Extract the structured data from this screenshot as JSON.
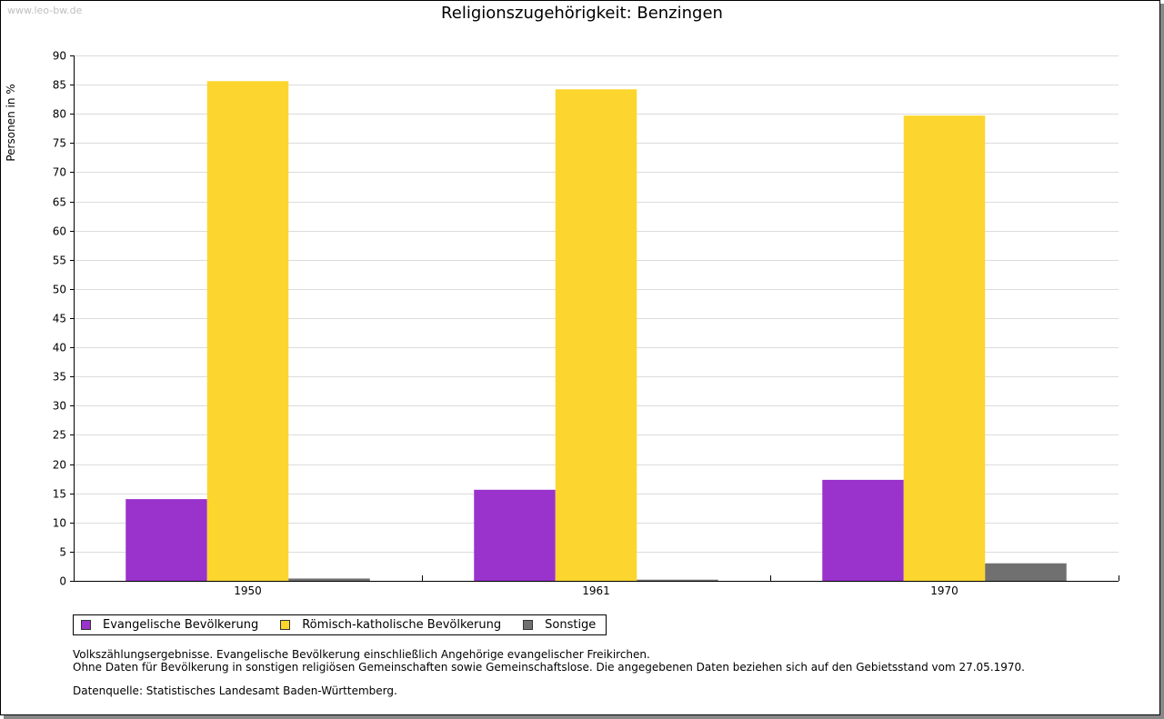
{
  "watermark": "www.leo-bw.de",
  "chart_data": {
    "type": "bar",
    "title": "Religionszugehörigkeit: Benzingen",
    "xlabel": "",
    "ylabel": "Personen in %",
    "ylim": [
      0,
      90
    ],
    "ytick_step": 5,
    "grid": true,
    "categories": [
      "1950",
      "1961",
      "1970"
    ],
    "series": [
      {
        "name": "Evangelische Bevölkerung",
        "color": "#9933cc",
        "values": [
          14.0,
          15.6,
          17.3
        ]
      },
      {
        "name": "Römisch-katholische Bevölkerung",
        "color": "#fcd62e",
        "values": [
          85.6,
          84.2,
          79.7
        ]
      },
      {
        "name": "Sonstige",
        "color": "#707070",
        "values": [
          0.4,
          0.2,
          3.0
        ]
      }
    ],
    "legend_position": "bottom-left"
  },
  "notes": {
    "line1": "Volkszählungsergebnisse. Evangelische Bevölkerung einschließlich Angehörige evangelischer Freikirchen.",
    "line2": "Ohne Daten für Bevölkerung in sonstigen religiösen Gemeinschaften sowie Gemeinschaftslose. Die angegebenen Daten beziehen sich auf den Gebietsstand vom 27.05.1970.",
    "source": "Datenquelle: Statistisches Landesamt Baden-Württemberg."
  }
}
